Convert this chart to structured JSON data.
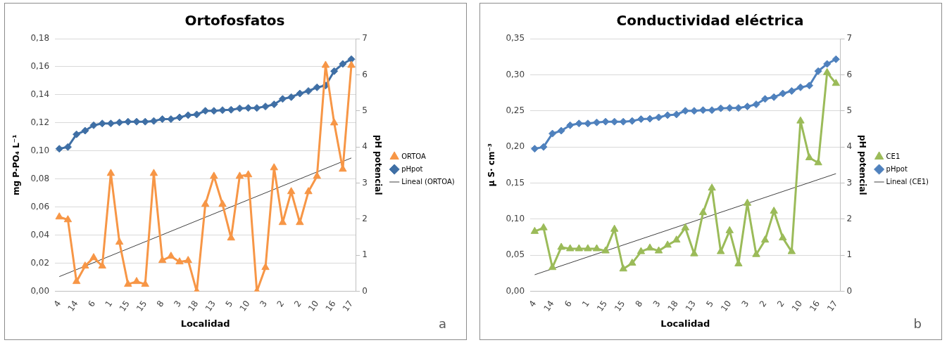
{
  "chart_data": [
    {
      "type": "line",
      "title": "Ortofosfatos",
      "xlabel": "Localidad",
      "ylabel": "mg P-PO₄ L⁻¹",
      "y2label": "pH potencial",
      "categories": [
        "4",
        null,
        "14",
        null,
        "6",
        null,
        "1",
        null,
        "15",
        null,
        "15",
        null,
        "8",
        null,
        "3",
        null,
        "18",
        null,
        "13",
        null,
        "5",
        null,
        "10",
        null,
        "3",
        null,
        "2",
        null,
        "2",
        null,
        "10",
        null,
        "16",
        null,
        "17"
      ],
      "series": [
        {
          "name": "ORTOA",
          "color": "#f79646",
          "marker": "triangle",
          "values": [
            0.053,
            0.051,
            0.007,
            0.018,
            0.024,
            0.018,
            0.084,
            0.035,
            0.005,
            0.007,
            0.005,
            0.084,
            0.022,
            0.025,
            0.021,
            0.022,
            0.0,
            0.062,
            0.082,
            0.062,
            0.038,
            0.082,
            0.083,
            0.0,
            0.017,
            0.088,
            0.049,
            0.071,
            0.049,
            0.071,
            0.082,
            0.161,
            0.12,
            0.087,
            0.161
          ]
        },
        {
          "name": "pHpot",
          "color": "#3f6fa5",
          "marker": "diamond",
          "axis": "y2",
          "values": [
            3.95,
            4.0,
            4.35,
            4.45,
            4.6,
            4.65,
            4.65,
            4.68,
            4.7,
            4.7,
            4.7,
            4.72,
            4.77,
            4.77,
            4.82,
            4.88,
            4.9,
            5.0,
            5.0,
            5.02,
            5.03,
            5.07,
            5.08,
            5.08,
            5.12,
            5.18,
            5.33,
            5.38,
            5.48,
            5.55,
            5.65,
            5.7,
            6.1,
            6.3,
            6.43
          ]
        },
        {
          "name": "Lineal (ORTOA)",
          "color": "#404040",
          "marker": "none",
          "x": [
            "4",
            "17"
          ],
          "values": [
            0.0105,
            0.095
          ]
        }
      ],
      "ylim": [
        0,
        0.18
      ],
      "yticks": [
        {
          "value": 0,
          "label": "0,00"
        },
        {
          "value": 0.02,
          "label": "0,02"
        },
        {
          "value": 0.04,
          "label": "0,04"
        },
        {
          "value": 0.06,
          "label": "0,06"
        },
        {
          "value": 0.08,
          "label": "0,08"
        },
        {
          "value": 0.1,
          "label": "0,10"
        },
        {
          "value": 0.12,
          "label": "0,12"
        },
        {
          "value": 0.14,
          "label": "0,14"
        },
        {
          "value": 0.16,
          "label": "0,16"
        },
        {
          "value": 0.18,
          "label": "0,18"
        }
      ],
      "y2lim": [
        0,
        7
      ],
      "y2ticks": [
        0,
        1,
        2,
        3,
        4,
        5,
        6,
        7
      ],
      "grid": "y",
      "legend": "right",
      "annotations": [
        "a"
      ]
    },
    {
      "type": "line",
      "title": "Conductividad eléctrica",
      "xlabel": "Localidad",
      "ylabel": "µ S· cm⁻³",
      "y2label": "pH potencial",
      "categories": [
        "4",
        null,
        "14",
        null,
        "6",
        null,
        "1",
        null,
        "15",
        null,
        "15",
        null,
        "8",
        null,
        "3",
        null,
        "18",
        null,
        "13",
        null,
        "5",
        null,
        "10",
        null,
        "3",
        null,
        "2",
        null,
        "2",
        null,
        "10",
        null,
        "16",
        null,
        "17"
      ],
      "series": [
        {
          "name": "CE1",
          "color": "#9bbb59",
          "marker": "triangle",
          "values": [
            0.083,
            0.088,
            0.033,
            0.061,
            0.059,
            0.059,
            0.059,
            0.059,
            0.056,
            0.086,
            0.031,
            0.039,
            0.055,
            0.06,
            0.056,
            0.064,
            0.071,
            0.088,
            0.052,
            0.109,
            0.143,
            0.055,
            0.084,
            0.038,
            0.122,
            0.051,
            0.071,
            0.111,
            0.074,
            0.055,
            0.236,
            0.185,
            0.178,
            0.303,
            0.288
          ]
        },
        {
          "name": "pHpot",
          "color": "#4f81bd",
          "marker": "diamond",
          "axis": "y2",
          "values": [
            3.95,
            4.0,
            4.37,
            4.45,
            4.6,
            4.65,
            4.65,
            4.68,
            4.7,
            4.7,
            4.7,
            4.72,
            4.77,
            4.78,
            4.82,
            4.88,
            4.9,
            5.0,
            5.0,
            5.02,
            5.02,
            5.07,
            5.08,
            5.08,
            5.12,
            5.18,
            5.33,
            5.38,
            5.48,
            5.55,
            5.65,
            5.7,
            6.1,
            6.3,
            6.43
          ]
        },
        {
          "name": "Lineal (CE1)",
          "color": "#404040",
          "marker": "none",
          "x": [
            "4",
            "17"
          ],
          "values": [
            0.023,
            0.163
          ]
        }
      ],
      "ylim": [
        0,
        0.35
      ],
      "yticks": [
        {
          "value": 0,
          "label": "0,00"
        },
        {
          "value": 0.05,
          "label": "0,05"
        },
        {
          "value": 0.1,
          "label": "0,10"
        },
        {
          "value": 0.15,
          "label": "0,15"
        },
        {
          "value": 0.2,
          "label": "0,20"
        },
        {
          "value": 0.25,
          "label": "0,25"
        },
        {
          "value": 0.3,
          "label": "0,30"
        },
        {
          "value": 0.35,
          "label": "0,35"
        }
      ],
      "y2lim": [
        0,
        7
      ],
      "y2ticks": [
        0,
        1,
        2,
        3,
        4,
        5,
        6,
        7
      ],
      "grid": "y",
      "legend": "right",
      "annotations": [
        "b"
      ]
    }
  ]
}
